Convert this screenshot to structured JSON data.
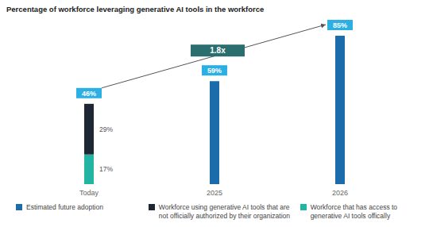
{
  "chart_data": {
    "type": "bar",
    "title": "Percentage of workforce leveraging generative AI tools in the workforce",
    "categories": [
      "Today",
      "2025",
      "2026"
    ],
    "stacked": true,
    "series": [
      {
        "name": "Estimated future adoption",
        "color": "#1a6cab",
        "values": [
          null,
          59,
          85
        ],
        "data_labels": false
      },
      {
        "name": "Workforce using generative AI tools that are not officially authorized by their organization",
        "color": "#1f2634",
        "values": [
          29,
          null,
          null
        ],
        "value_labels": [
          "29%",
          null,
          null
        ],
        "data_labels": true
      },
      {
        "name": "Workforce that has access to generative AI tools offically",
        "color": "#22b5a3",
        "values": [
          17,
          null,
          null
        ],
        "value_labels": [
          "17%",
          null,
          null
        ],
        "data_labels": true
      }
    ],
    "totals": [
      46,
      59,
      85
    ],
    "total_labels": [
      "46%",
      "59%",
      "85%"
    ],
    "annotations": [
      {
        "text": "1.8x",
        "category": "2025"
      }
    ],
    "ylim": [
      0,
      100
    ],
    "tick_labels": "x",
    "grid": false,
    "legend": "bottom"
  }
}
